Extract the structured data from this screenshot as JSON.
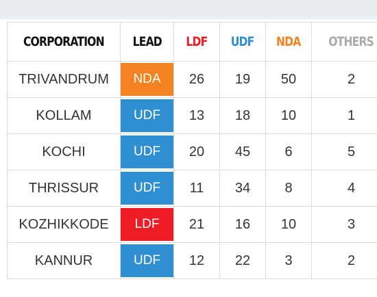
{
  "colors": {
    "LDF": "#ee1c25",
    "UDF": "#2f8fd0",
    "NDA": "#f58220",
    "OTHERS": "#aaaaaa",
    "header_default": "#111111"
  },
  "table": {
    "headers": [
      {
        "key": "corporation",
        "label": "CORPORATION",
        "color": "#111111"
      },
      {
        "key": "lead",
        "label": "LEAD",
        "color": "#111111"
      },
      {
        "key": "ldf",
        "label": "LDF",
        "color": "#ee1c25"
      },
      {
        "key": "udf",
        "label": "UDF",
        "color": "#2f8fd0"
      },
      {
        "key": "nda",
        "label": "NDA",
        "color": "#f58220"
      },
      {
        "key": "others",
        "label": "OTHERS",
        "color": "#aaaaaa"
      }
    ],
    "rows": [
      {
        "corporation": "TRIVANDRUM",
        "lead": "NDA",
        "lead_color": "#f58220",
        "ldf": "26",
        "udf": "19",
        "nda": "50",
        "others": "2"
      },
      {
        "corporation": "KOLLAM",
        "lead": "UDF",
        "lead_color": "#2f8fd0",
        "ldf": "13",
        "udf": "18",
        "nda": "10",
        "others": "1"
      },
      {
        "corporation": "KOCHI",
        "lead": "UDF",
        "lead_color": "#2f8fd0",
        "ldf": "20",
        "udf": "45",
        "nda": "6",
        "others": "5"
      },
      {
        "corporation": "THRISSUR",
        "lead": "UDF",
        "lead_color": "#2f8fd0",
        "ldf": "11",
        "udf": "34",
        "nda": "8",
        "others": "4"
      },
      {
        "corporation": "KOZHIKKODE",
        "lead": "LDF",
        "lead_color": "#ee1c25",
        "ldf": "21",
        "udf": "16",
        "nda": "10",
        "others": "3"
      },
      {
        "corporation": "KANNUR",
        "lead": "UDF",
        "lead_color": "#2f8fd0",
        "ldf": "12",
        "udf": "22",
        "nda": "3",
        "others": "2"
      }
    ]
  }
}
